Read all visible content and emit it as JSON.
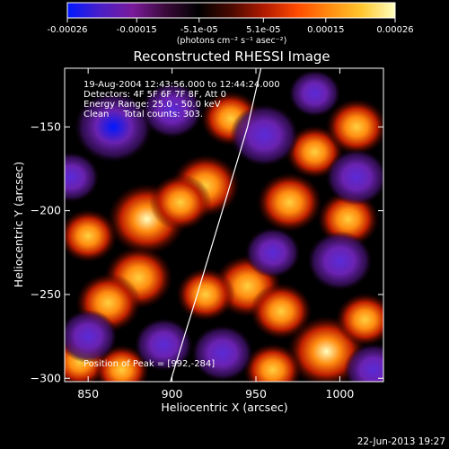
{
  "colorbar": {
    "tick_labels": [
      "-0.00026",
      "-0.00015",
      "-5.1e-05",
      "5.1e-05",
      "0.00015",
      "0.00026"
    ],
    "tick_values": [
      -0.00026,
      -0.00015,
      -5.1e-05,
      5.1e-05,
      0.00015,
      0.00026
    ],
    "range": [
      -0.00026,
      0.00026
    ],
    "units_label": "(photons cm⁻² s⁻¹ asec⁻²)",
    "colormap": [
      "#0018ff",
      "#4a1fc8",
      "#7a1a9a",
      "#3a0a3a",
      "#000000",
      "#4a0a00",
      "#b01a00",
      "#ff4a00",
      "#ff8c10",
      "#ffc830",
      "#ffffc0"
    ]
  },
  "chart_data": {
    "type": "heatmap",
    "title": "Reconstructed RHESSI Image",
    "xlabel": "Heliocentric X (arcsec)",
    "ylabel": "Heliocentric Y (arcsec)",
    "xlim": [
      836,
      1026
    ],
    "ylim": [
      -302,
      -115
    ],
    "xticks": [
      850,
      900,
      950,
      1000
    ],
    "yticks": [
      -150,
      -200,
      -250,
      -300
    ],
    "annotations": [
      "19-Aug-2004 12:43:56.000 to 12:44:24.000",
      "Detectors: 4F 5F 6F 7F 8F, Att 0",
      "Energy Range: 25.0 - 50.0 keV",
      "Clean     Total counts: 303.",
      "Position of Peak = [992,-284]"
    ],
    "peak": {
      "x": 992,
      "y": -284
    },
    "limb_points": [
      [
        899,
        -302
      ],
      [
        915,
        -250
      ],
      [
        930,
        -200
      ],
      [
        945,
        -150
      ],
      [
        953,
        -115
      ]
    ],
    "sources": [
      {
        "x": 885,
        "y": -205,
        "value": 0.00026
      },
      {
        "x": 880,
        "y": -240,
        "value": 0.0002
      },
      {
        "x": 862,
        "y": -255,
        "value": 0.00018
      },
      {
        "x": 920,
        "y": -185,
        "value": 0.0002
      },
      {
        "x": 905,
        "y": -195,
        "value": 0.00016
      },
      {
        "x": 850,
        "y": -215,
        "value": 0.00014
      },
      {
        "x": 935,
        "y": -145,
        "value": 0.00015
      },
      {
        "x": 985,
        "y": -165,
        "value": 0.00014
      },
      {
        "x": 1010,
        "y": -150,
        "value": 0.00016
      },
      {
        "x": 970,
        "y": -195,
        "value": 0.00018
      },
      {
        "x": 1005,
        "y": -205,
        "value": 0.00016
      },
      {
        "x": 945,
        "y": -245,
        "value": 0.0002
      },
      {
        "x": 965,
        "y": -260,
        "value": 0.00016
      },
      {
        "x": 920,
        "y": -250,
        "value": 0.00014
      },
      {
        "x": 992,
        "y": -284,
        "value": 0.00026
      },
      {
        "x": 960,
        "y": -295,
        "value": 0.00014
      },
      {
        "x": 845,
        "y": -290,
        "value": 0.00014
      },
      {
        "x": 870,
        "y": -295,
        "value": 0.00012
      },
      {
        "x": 1015,
        "y": -265,
        "value": 0.00014
      },
      {
        "x": 865,
        "y": -150,
        "value": -0.00026
      },
      {
        "x": 900,
        "y": -140,
        "value": -0.00016
      },
      {
        "x": 955,
        "y": -155,
        "value": -0.0002
      },
      {
        "x": 1010,
        "y": -180,
        "value": -0.00016
      },
      {
        "x": 1000,
        "y": -230,
        "value": -0.00018
      },
      {
        "x": 960,
        "y": -225,
        "value": -0.00012
      },
      {
        "x": 850,
        "y": -275,
        "value": -0.00014
      },
      {
        "x": 895,
        "y": -280,
        "value": -0.00014
      },
      {
        "x": 930,
        "y": -285,
        "value": -0.00016
      },
      {
        "x": 1020,
        "y": -295,
        "value": -0.00014
      },
      {
        "x": 840,
        "y": -180,
        "value": -0.00012
      },
      {
        "x": 985,
        "y": -130,
        "value": -0.0001
      }
    ]
  },
  "footer": {
    "timestamp": "22-Jun-2013 19:27"
  }
}
